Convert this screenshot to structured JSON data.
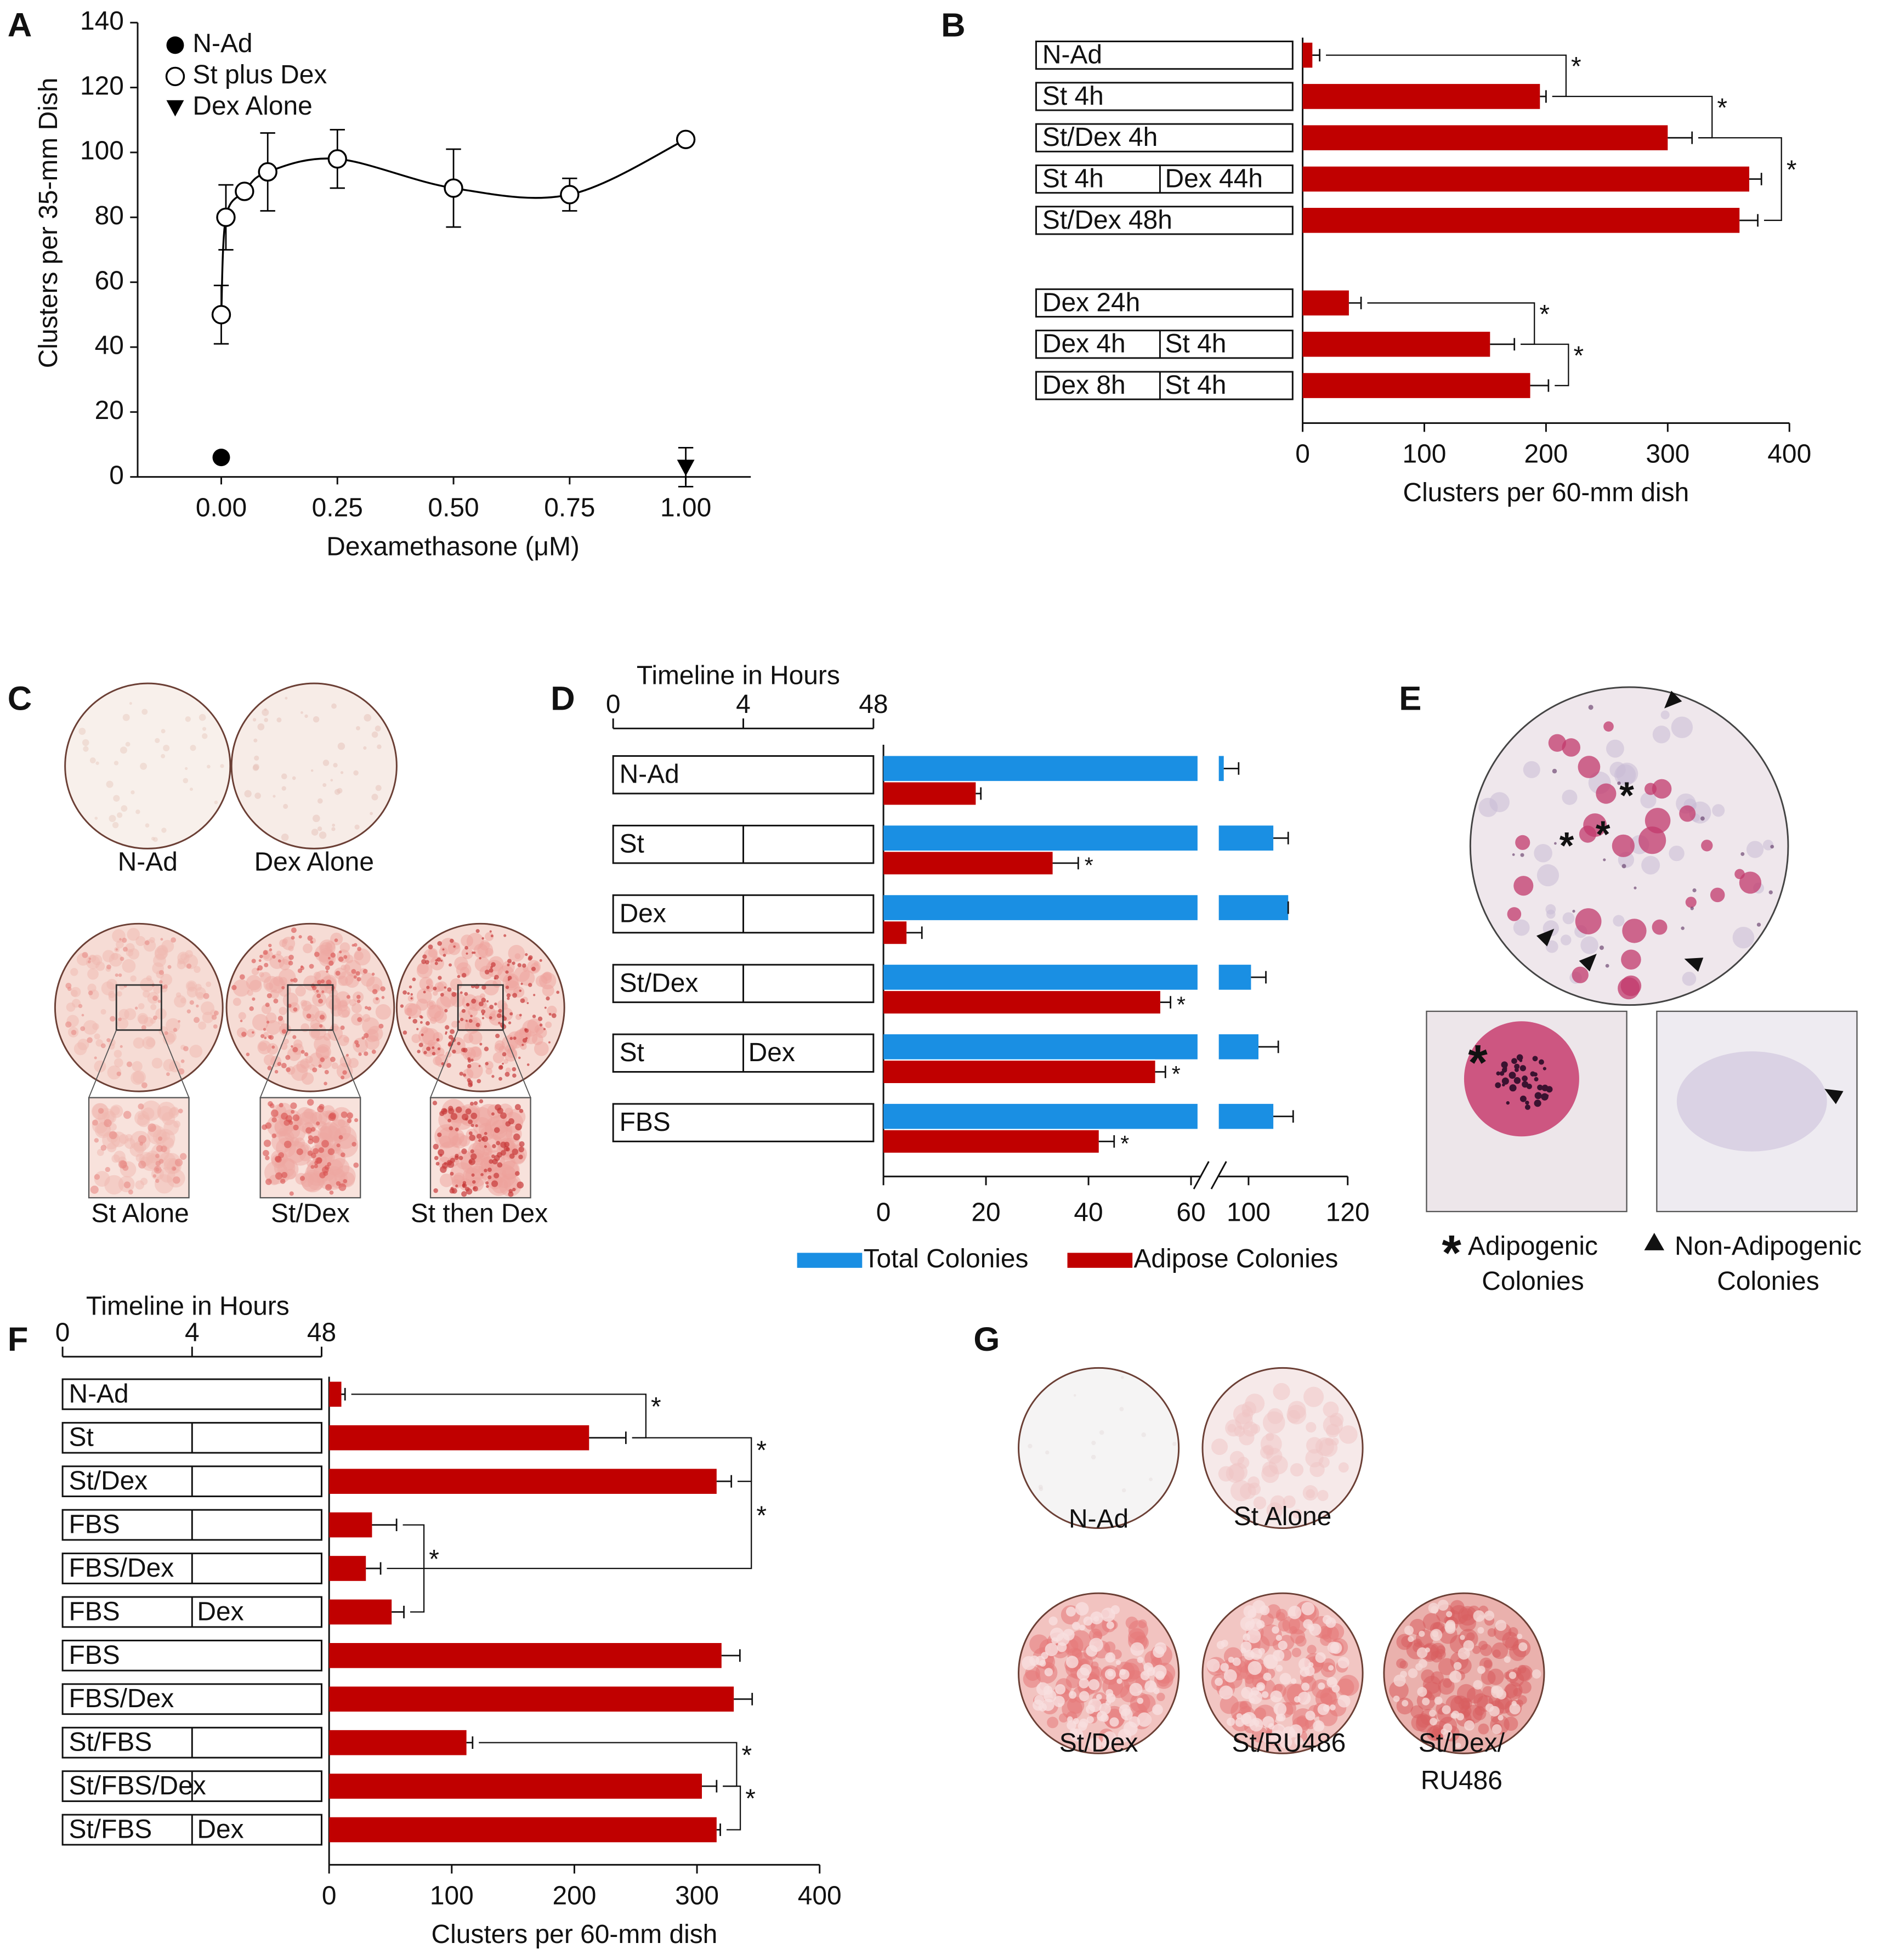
{
  "chart_data": [
    {
      "panel": "A",
      "type": "scatter",
      "xlabel": "Dexamethasone (μM)",
      "ylabel": "Clusters per 35-mm Dish",
      "xlim": [
        -0.18,
        1.14
      ],
      "xticks": [
        {
          "value": 0,
          "label": "0.00"
        },
        {
          "value": 0.25,
          "label": "0.25"
        },
        {
          "value": 0.5,
          "label": "0.50"
        },
        {
          "value": 0.75,
          "label": "0.75"
        },
        {
          "value": 1,
          "label": "1.00"
        }
      ],
      "ylim": [
        0,
        140
      ],
      "yticks": [
        0,
        20,
        40,
        60,
        80,
        100,
        120,
        140
      ],
      "legend": "upper left",
      "series": [
        {
          "name": "N-Ad",
          "marker": "filled-circle",
          "color": "#000000",
          "x": [
            0
          ],
          "values": [
            6
          ]
        },
        {
          "name": "St plus Dex",
          "marker": "open-circle",
          "color": "#000000",
          "line": "smooth",
          "x": [
            0,
            0.01,
            0.05,
            0.1,
            0.25,
            0.5,
            0.75,
            1
          ],
          "values": [
            50,
            80,
            88,
            94,
            98,
            89,
            87,
            104
          ],
          "errors": [
            9,
            10,
            0,
            12,
            9,
            12,
            5,
            0
          ]
        },
        {
          "name": "Dex Alone",
          "marker": "down-triangle",
          "color": "#000000",
          "x": [
            1
          ],
          "values": [
            3
          ],
          "errors": [
            6
          ]
        }
      ]
    },
    {
      "panel": "B",
      "type": "barh",
      "xlabel": "Clusters per 60-mm dish",
      "xlim": [
        0,
        400
      ],
      "xticks": [
        0,
        100,
        200,
        300,
        400
      ],
      "color": "#c00000",
      "categories": [
        [
          "N-Ad"
        ],
        [
          "St 4h"
        ],
        [
          "St/Dex 4h"
        ],
        [
          "St 4h",
          "Dex 44h"
        ],
        [
          "St/Dex 48h"
        ],
        null,
        [
          "Dex 24h"
        ],
        [
          "Dex 4h",
          "St 4h"
        ],
        [
          "Dex 8h",
          "St 4h"
        ]
      ],
      "values": [
        8,
        195,
        300,
        367,
        359,
        null,
        38,
        154,
        187
      ],
      "errors": [
        6,
        5,
        20,
        10,
        15,
        null,
        10,
        20,
        15
      ],
      "significance": [
        {
          "label": "*",
          "rows": [
            0,
            1
          ]
        },
        {
          "label": "*",
          "rows": [
            1,
            2
          ]
        },
        {
          "label": "*",
          "rows": [
            2,
            4
          ]
        },
        {
          "label": "*",
          "rows": [
            6,
            7
          ]
        },
        {
          "label": "*",
          "rows": [
            7,
            8
          ]
        }
      ]
    },
    {
      "panel": "D",
      "type": "barh-grouped",
      "xlim": [
        0,
        120
      ],
      "xbreak": [
        62,
        94
      ],
      "xticks": [
        0,
        20,
        40,
        60,
        100,
        120
      ],
      "timeline": {
        "title": "Timeline in Hours",
        "ticks": [
          0,
          4,
          48
        ]
      },
      "categories": [
        [
          "N-Ad"
        ],
        [
          "St"
        ],
        [
          "Dex"
        ],
        [
          "St/Dex"
        ],
        [
          "St",
          "Dex"
        ],
        [
          "FBS"
        ]
      ],
      "splits": [
        null,
        4,
        4,
        4,
        4,
        null
      ],
      "legend": "bottom",
      "series": [
        {
          "name": "Total Colonies",
          "color": "#1a8fe3",
          "values": [
            95,
            105,
            108,
            100.5,
            102,
            105
          ],
          "errors": [
            3,
            3,
            0,
            3,
            4,
            4
          ]
        },
        {
          "name": "Adipose Colonies",
          "color": "#c00000",
          "values": [
            18,
            33,
            4.5,
            54,
            53,
            42
          ],
          "errors": [
            1,
            5,
            3,
            2,
            2,
            3
          ],
          "significance": [
            null,
            "*",
            null,
            "*",
            "*",
            "*"
          ]
        }
      ]
    },
    {
      "panel": "F",
      "type": "barh",
      "xlabel": "Clusters per 60-mm dish",
      "xlim": [
        0,
        400
      ],
      "xticks": [
        0,
        100,
        200,
        300,
        400
      ],
      "color": "#c00000",
      "timeline": {
        "title": "Timeline in Hours",
        "ticks": [
          0,
          4,
          48
        ]
      },
      "categories": [
        [
          "N-Ad"
        ],
        [
          "St"
        ],
        [
          "St/Dex"
        ],
        [
          "FBS"
        ],
        [
          "FBS/Dex"
        ],
        [
          "FBS",
          "Dex"
        ],
        [
          "FBS"
        ],
        [
          "FBS/Dex"
        ],
        [
          "St/FBS"
        ],
        [
          "St/FBS/Dex"
        ],
        [
          "St/FBS",
          "Dex"
        ]
      ],
      "splits": [
        null,
        4,
        4,
        4,
        4,
        4,
        null,
        null,
        4,
        4,
        4
      ],
      "values": [
        10,
        212,
        316,
        35,
        30,
        51,
        320,
        330,
        112,
        304,
        316
      ],
      "errors": [
        3,
        30,
        12,
        20,
        12,
        10,
        15,
        15,
        5,
        12,
        3
      ],
      "significance": [
        {
          "label": "*",
          "rows": [
            0,
            1
          ]
        },
        {
          "label": "*",
          "rows": [
            1,
            2
          ]
        },
        {
          "label": "*",
          "rows": [
            2,
            4
          ]
        },
        {
          "label": "*",
          "rows": [
            3,
            5
          ]
        },
        {
          "label": "*",
          "rows": [
            8,
            9
          ]
        },
        {
          "label": "*",
          "rows": [
            9,
            10
          ]
        }
      ]
    }
  ],
  "images": [
    {
      "panel": "C",
      "labels": [
        "N-Ad",
        "Dex Alone",
        "St Alone",
        "St/Dex",
        "St then Dex"
      ]
    },
    {
      "panel": "E",
      "symbol": "*",
      "labels": [
        [
          "Adipogenic",
          "Colonies"
        ],
        [
          "Non-Adipogenic",
          "Colonies"
        ]
      ]
    },
    {
      "panel": "G",
      "labels": [
        [
          "N-Ad"
        ],
        [
          "St Alone"
        ],
        [
          "St/Dex"
        ],
        [
          "St/RU486"
        ],
        [
          "St/Dex/",
          "RU486"
        ]
      ]
    }
  ]
}
